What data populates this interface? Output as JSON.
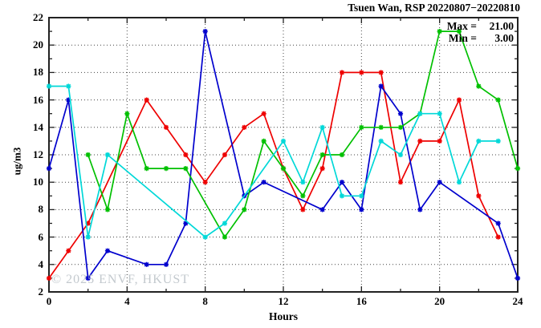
{
  "title": "Tsuen Wan, RSP 20220807−20220810",
  "legend": {
    "rows": [
      {
        "label": "Max =",
        "value": "21.00"
      },
      {
        "label": "Min =",
        "value": "3.00"
      }
    ]
  },
  "watermark": "© 2025 ENVF, HKUST",
  "chart_data": {
    "type": "line",
    "title": "Tsuen Wan, RSP 20220807−20220810",
    "xlabel": "Hours",
    "ylabel": "ug/m3",
    "xlim": [
      0,
      24
    ],
    "ylim": [
      2,
      22
    ],
    "xticks": [
      0,
      4,
      8,
      12,
      16,
      20,
      24
    ],
    "yticks": [
      2,
      4,
      6,
      8,
      10,
      12,
      14,
      16,
      18,
      20,
      22
    ],
    "x_minor_step": 2,
    "y_minor_step": 1,
    "grid": true,
    "grid_vertical_at": [
      4,
      8,
      12,
      16,
      20
    ],
    "grid_horizontal_at": [
      4,
      6,
      8,
      10,
      12,
      14,
      16,
      18,
      20
    ],
    "legend_position": "top-right-inside",
    "series": [
      {
        "name": "red-series",
        "color": "#ee0000",
        "points": [
          [
            0,
            3
          ],
          [
            1,
            5
          ],
          [
            2,
            7
          ],
          [
            5,
            16
          ],
          [
            6,
            14
          ],
          [
            7,
            12
          ],
          [
            8,
            10
          ],
          [
            9,
            12
          ],
          [
            10,
            14
          ],
          [
            11,
            15
          ],
          [
            12,
            11
          ],
          [
            13,
            8
          ],
          [
            14,
            11
          ],
          [
            15,
            18
          ],
          [
            16,
            18
          ],
          [
            17,
            18
          ],
          [
            18,
            10
          ],
          [
            19,
            13
          ],
          [
            20,
            13
          ],
          [
            21,
            16
          ],
          [
            22,
            9
          ],
          [
            23,
            6
          ]
        ]
      },
      {
        "name": "blue-series",
        "color": "#0000cd",
        "points": [
          [
            0,
            11
          ],
          [
            1,
            16
          ],
          [
            2,
            3
          ],
          [
            3,
            5
          ],
          [
            5,
            4
          ],
          [
            6,
            4
          ],
          [
            7,
            7
          ],
          [
            8,
            21
          ],
          [
            10,
            9
          ],
          [
            11,
            10
          ],
          [
            14,
            8
          ],
          [
            15,
            10
          ],
          [
            16,
            8
          ],
          [
            17,
            17
          ],
          [
            18,
            15
          ],
          [
            19,
            8
          ],
          [
            20,
            10
          ],
          [
            23,
            7
          ],
          [
            24,
            3
          ]
        ]
      },
      {
        "name": "green-series",
        "color": "#00c000",
        "points": [
          [
            2,
            12
          ],
          [
            3,
            8
          ],
          [
            4,
            15
          ],
          [
            5,
            11
          ],
          [
            6,
            11
          ],
          [
            7,
            11
          ],
          [
            9,
            6
          ],
          [
            10,
            8
          ],
          [
            11,
            13
          ],
          [
            12,
            11
          ],
          [
            13,
            9
          ],
          [
            14,
            12
          ],
          [
            15,
            12
          ],
          [
            16,
            14
          ],
          [
            17,
            14
          ],
          [
            18,
            14
          ],
          [
            19,
            15
          ],
          [
            20,
            21
          ],
          [
            21,
            21
          ],
          [
            22,
            17
          ],
          [
            23,
            16
          ],
          [
            24,
            11
          ]
        ]
      },
      {
        "name": "cyan-series",
        "color": "#00d8d8",
        "points": [
          [
            0,
            17
          ],
          [
            1,
            17
          ],
          [
            2,
            6
          ],
          [
            3,
            12
          ],
          [
            8,
            6
          ],
          [
            9,
            7
          ],
          [
            12,
            13
          ],
          [
            13,
            10
          ],
          [
            14,
            14
          ],
          [
            15,
            9
          ],
          [
            16,
            9
          ],
          [
            17,
            13
          ],
          [
            18,
            12
          ],
          [
            19,
            15
          ],
          [
            20,
            15
          ],
          [
            21,
            10
          ],
          [
            22,
            13
          ],
          [
            23,
            13
          ]
        ]
      }
    ],
    "stats": {
      "max": 21.0,
      "min": 3.0
    }
  }
}
